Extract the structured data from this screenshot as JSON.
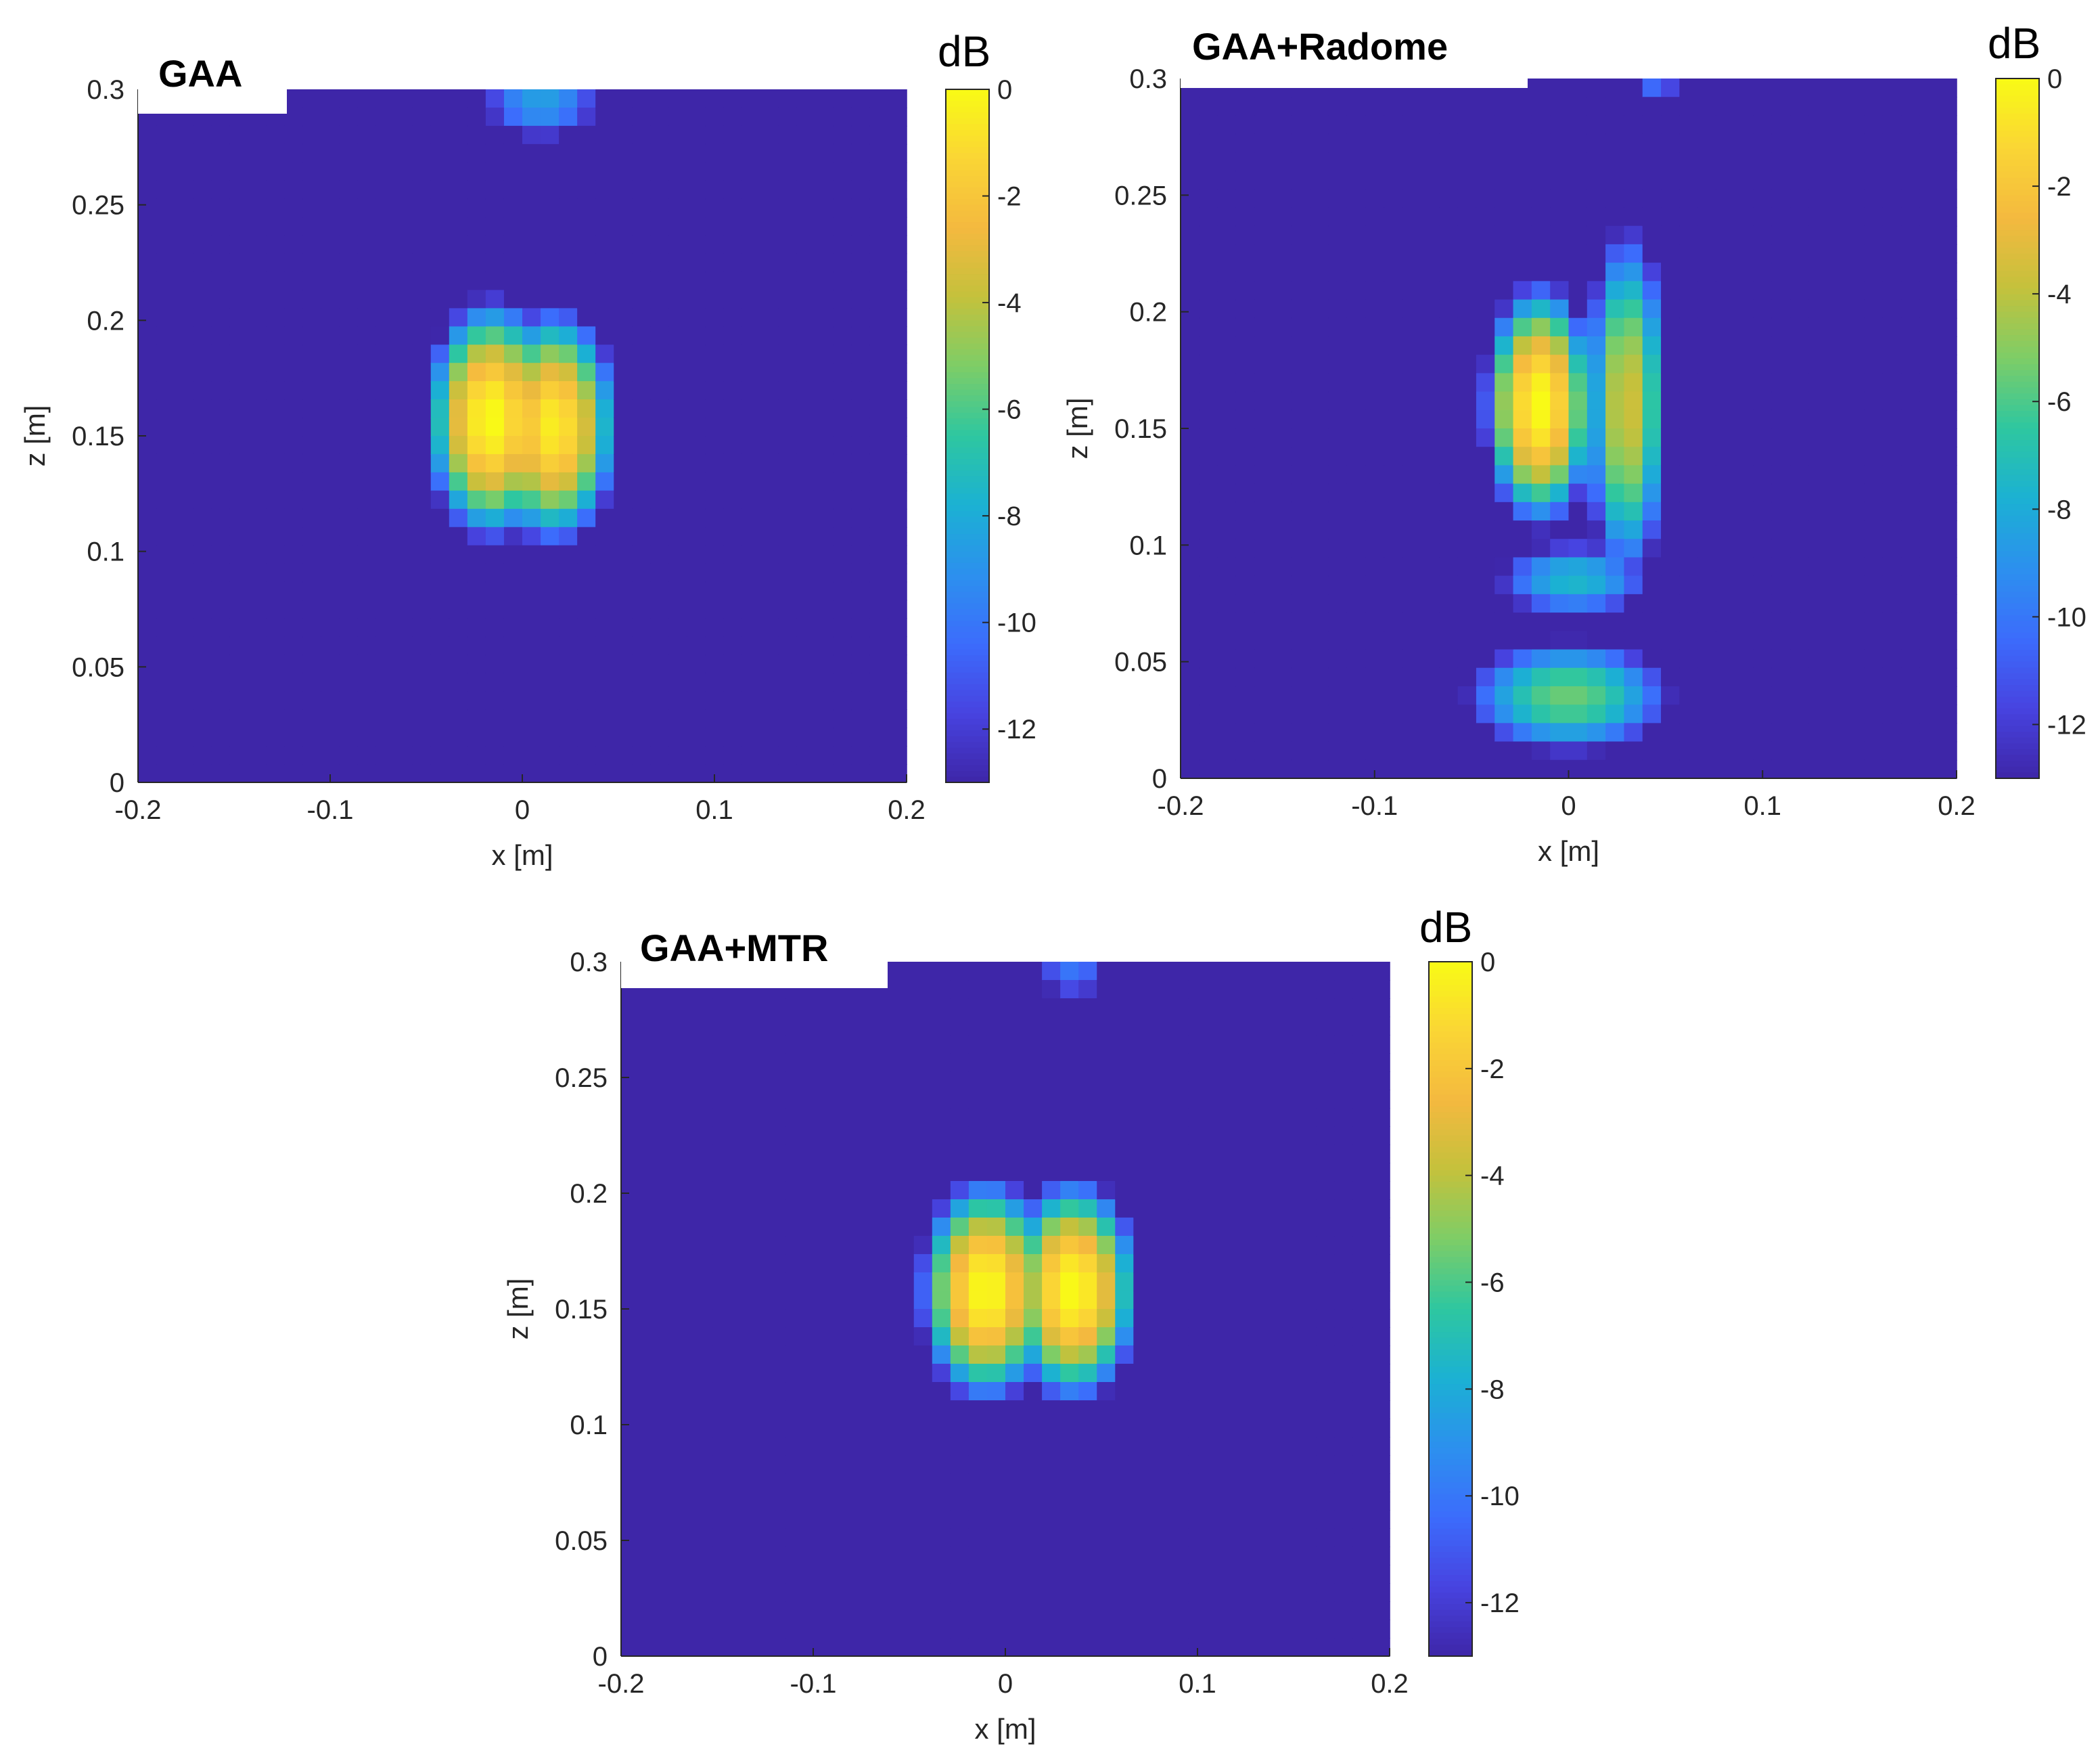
{
  "colormap": [
    "#3e26a8",
    "#4743e0",
    "#3c6cfc",
    "#2c90ee",
    "#1bb1d3",
    "#2ec7a0",
    "#7dcd67",
    "#c4c13c",
    "#f4b93f",
    "#fad535",
    "#f9fb15"
  ],
  "chart_data": [
    {
      "type": "heatmap",
      "title": "GAA",
      "xlabel": "x [m]",
      "ylabel": "z [m]",
      "xlim": [
        -0.2,
        0.2
      ],
      "ylim": [
        0,
        0.3
      ],
      "xticks": [
        "-0.2",
        "-0.1",
        "0",
        "0.1",
        "0.2"
      ],
      "yticks": [
        "0",
        "0.05",
        "0.1",
        "0.15",
        "0.2",
        "0.25",
        "0.3"
      ],
      "colorbar_label": "dB",
      "colorbar_ticks": [
        "0",
        "-2",
        "-4",
        "-6",
        "-8",
        "-10",
        "-12"
      ],
      "clim": [
        -13,
        0
      ],
      "background_db": -13,
      "blobs": [
        {
          "x": -0.016,
          "z": 0.157,
          "sx": 0.018,
          "sz": 0.027,
          "peak": 0
        },
        {
          "x": 0.016,
          "z": 0.154,
          "sx": 0.018,
          "sz": 0.027,
          "peak": -0.5
        },
        {
          "x": 0.01,
          "z": 0.295,
          "sx": 0.025,
          "sz": 0.014,
          "peak": -8.5
        }
      ]
    },
    {
      "type": "heatmap",
      "title": "GAA+Radome",
      "xlabel": "x [m]",
      "ylabel": "z [m]",
      "xlim": [
        -0.2,
        0.2
      ],
      "ylim": [
        0,
        0.3
      ],
      "xticks": [
        "-0.2",
        "-0.1",
        "0",
        "0.1",
        "0.2"
      ],
      "yticks": [
        "0",
        "0.05",
        "0.1",
        "0.15",
        "0.2",
        "0.25",
        "0.3"
      ],
      "colorbar_label": "dB",
      "colorbar_ticks": [
        "0",
        "-2",
        "-4",
        "-6",
        "-8",
        "-10",
        "-12"
      ],
      "clim": [
        -13,
        0
      ],
      "background_db": -13,
      "blobs": [
        {
          "x": -0.015,
          "z": 0.16,
          "sx": 0.015,
          "sz": 0.027,
          "peak": 0
        },
        {
          "x": 0.03,
          "z": 0.16,
          "sx": 0.013,
          "sz": 0.045,
          "peak": -3.5
        },
        {
          "x": 0.003,
          "z": 0.085,
          "sx": 0.03,
          "sz": 0.012,
          "peak": -7.5
        },
        {
          "x": 0.0,
          "z": 0.035,
          "sx": 0.035,
          "sz": 0.016,
          "peak": -5.5
        },
        {
          "x": 0.045,
          "z": 0.3,
          "sx": 0.012,
          "sz": 0.006,
          "peak": -9
        }
      ]
    },
    {
      "type": "heatmap",
      "title": "GAA+MTR",
      "xlabel": "x [m]",
      "ylabel": "z [m]",
      "xlim": [
        -0.2,
        0.2
      ],
      "ylim": [
        0,
        0.3
      ],
      "xticks": [
        "-0.2",
        "-0.1",
        "0",
        "0.1",
        "0.2"
      ],
      "yticks": [
        "0",
        "0.05",
        "0.1",
        "0.15",
        "0.2",
        "0.25",
        "0.3"
      ],
      "colorbar_label": "dB",
      "colorbar_ticks": [
        "0",
        "-2",
        "-4",
        "-6",
        "-8",
        "-10",
        "-12"
      ],
      "clim": [
        -13,
        0
      ],
      "background_db": -13,
      "blobs": [
        {
          "x": -0.01,
          "z": 0.158,
          "sx": 0.018,
          "sz": 0.025,
          "peak": 0
        },
        {
          "x": 0.035,
          "z": 0.158,
          "sx": 0.018,
          "sz": 0.025,
          "peak": 0
        },
        {
          "x": 0.035,
          "z": 0.295,
          "sx": 0.018,
          "sz": 0.01,
          "peak": -10
        }
      ]
    }
  ]
}
